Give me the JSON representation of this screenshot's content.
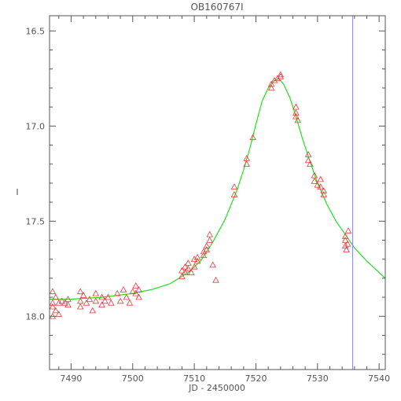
{
  "chart_data": {
    "type": "scatter",
    "title": "OB160767I",
    "xlabel": "JD - 2450000",
    "ylabel": "I",
    "xlim": [
      7486.5,
      7541.0
    ],
    "ylim": [
      18.28,
      16.42
    ],
    "y_inverted": true,
    "x_ticks": [
      7490,
      7500,
      7510,
      7520,
      7530,
      7540
    ],
    "x_tick_labels": [
      "7490",
      "7500",
      "7510",
      "7520",
      "7530",
      "7540"
    ],
    "y_ticks": [
      16.5,
      17.0,
      17.5,
      18.0
    ],
    "y_tick_labels": [
      "16.5",
      "17.0",
      "17.5",
      "18.0"
    ],
    "marker": "triangle-open",
    "marker_color": "#e83a3a",
    "model_color": "#22dd22",
    "vline_color": "#8888ff",
    "vline_x": 7535.7,
    "grid": false,
    "model_curve": {
      "x": [
        7486.5,
        7490,
        7495,
        7500,
        7503,
        7506,
        7509,
        7511,
        7513,
        7515,
        7517,
        7518,
        7519,
        7520,
        7521,
        7522,
        7523,
        7523.7,
        7524.5,
        7525.5,
        7526.5,
        7527.5,
        7528.5,
        7530,
        7531.5,
        7533,
        7534.5,
        7536,
        7538,
        7541
      ],
      "y": [
        17.91,
        17.91,
        17.9,
        17.88,
        17.86,
        17.83,
        17.77,
        17.71,
        17.61,
        17.49,
        17.33,
        17.23,
        17.12,
        16.99,
        16.87,
        16.8,
        16.76,
        16.75,
        16.78,
        16.85,
        16.95,
        17.06,
        17.16,
        17.3,
        17.41,
        17.5,
        17.57,
        17.64,
        17.71,
        17.8
      ]
    },
    "series": [
      {
        "x": [
          7487,
          7487,
          7487,
          7487,
          7487.5,
          7487.5,
          7488,
          7488,
          7488.5,
          7489,
          7489.5,
          7489.5,
          7491.5,
          7491.5,
          7491.5,
          7492,
          7492.5,
          7493,
          7493.5,
          7494,
          7494,
          7495,
          7495,
          7495.5,
          7496,
          7496.5,
          7497.5,
          7498,
          7498.5,
          7499,
          7499.5,
          7500,
          7500.5,
          7500.5,
          7501,
          7501,
          7508,
          7508,
          7508.5,
          7508.5,
          7509,
          7509,
          7509.5,
          7510,
          7510,
          7510.5,
          7510.5,
          7511.5,
          7511.5,
          7512,
          7512,
          7512.5,
          7512.5,
          7513,
          7513.5,
          7516.5,
          7516.5,
          7518.5,
          7518.5,
          7519.5,
          7522.5,
          7522.5,
          7523,
          7523.5,
          7524,
          7524,
          7526.5,
          7526.5,
          7526.5,
          7526.8,
          7528.5,
          7528.5,
          7528.8,
          7529.5,
          7529.5,
          7530,
          7530.5,
          7530.5,
          7531,
          7531,
          7534.5,
          7534.5,
          7534.5,
          7534.7,
          7534.9,
          7535
        ],
        "y": [
          17.87,
          17.93,
          17.95,
          18.0,
          17.9,
          17.97,
          17.93,
          17.99,
          17.92,
          17.93,
          17.91,
          17.94,
          17.87,
          17.92,
          17.95,
          17.89,
          17.93,
          17.91,
          17.97,
          17.92,
          17.88,
          17.94,
          17.9,
          17.92,
          17.9,
          17.93,
          17.88,
          17.92,
          17.86,
          17.9,
          17.93,
          17.87,
          17.84,
          17.88,
          17.86,
          17.9,
          17.79,
          17.76,
          17.74,
          17.77,
          17.75,
          17.72,
          17.77,
          17.7,
          17.74,
          17.71,
          17.69,
          17.68,
          17.66,
          17.63,
          17.65,
          17.6,
          17.57,
          17.73,
          17.81,
          17.32,
          17.36,
          17.17,
          17.2,
          17.06,
          16.78,
          16.8,
          16.76,
          16.75,
          16.73,
          16.74,
          16.9,
          16.93,
          16.95,
          16.97,
          17.15,
          17.18,
          17.2,
          17.26,
          17.29,
          17.31,
          17.28,
          17.32,
          17.34,
          17.36,
          17.58,
          17.6,
          17.63,
          17.65,
          17.62,
          17.55
        ]
      }
    ]
  }
}
